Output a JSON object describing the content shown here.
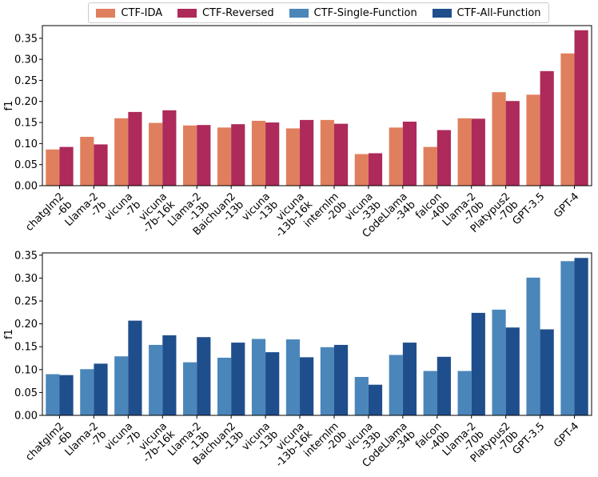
{
  "legend": {
    "items": [
      {
        "label": "CTF-IDA",
        "color": "#E07F5E"
      },
      {
        "label": "CTF-Reversed",
        "color": "#AD2A5A"
      },
      {
        "label": "CTF-Single-Function",
        "color": "#4A86BA"
      },
      {
        "label": "CTF-All-Function",
        "color": "#1F4E8C"
      }
    ]
  },
  "chart_data": [
    {
      "type": "bar",
      "title": "",
      "xlabel": "",
      "ylabel": "f1",
      "ylim": [
        0,
        0.38
      ],
      "yticks": [
        "0.00",
        "0.05",
        "0.10",
        "0.15",
        "0.20",
        "0.25",
        "0.30",
        "0.35"
      ],
      "categories": [
        [
          "chatglm2",
          "-6b"
        ],
        [
          "Llama-2",
          "-7b"
        ],
        [
          "vicuna",
          "-7b"
        ],
        [
          "vicuna",
          "-7b-16k"
        ],
        [
          "Llama-2",
          "-13b"
        ],
        [
          "Baichuan2",
          "-13b"
        ],
        [
          "vicuna",
          "-13b"
        ],
        [
          "vicuna",
          "-13b-16k"
        ],
        [
          "internlm",
          "-20b"
        ],
        [
          "vicuna",
          "-33b"
        ],
        [
          "CodeLlama",
          "-34b"
        ],
        [
          "falcon",
          "-40b"
        ],
        [
          "Llama-2",
          "-70b"
        ],
        [
          "Platypus2",
          "-70b"
        ],
        [
          "GPT-3.5"
        ],
        [
          "GPT-4"
        ]
      ],
      "series": [
        {
          "name": "CTF-IDA",
          "color": "#E07F5E",
          "values": [
            0.086,
            0.116,
            0.16,
            0.149,
            0.143,
            0.138,
            0.154,
            0.136,
            0.156,
            0.075,
            0.138,
            0.092,
            0.16,
            0.222,
            0.216,
            0.314
          ]
        },
        {
          "name": "CTF-Reversed",
          "color": "#AD2A5A",
          "values": [
            0.092,
            0.098,
            0.175,
            0.179,
            0.144,
            0.146,
            0.15,
            0.156,
            0.147,
            0.077,
            0.152,
            0.132,
            0.159,
            0.201,
            0.272,
            0.369
          ]
        }
      ]
    },
    {
      "type": "bar",
      "title": "",
      "xlabel": "",
      "ylabel": "f1",
      "ylim": [
        0,
        0.355
      ],
      "yticks": [
        "0.00",
        "0.05",
        "0.10",
        "0.15",
        "0.20",
        "0.25",
        "0.30",
        "0.35"
      ],
      "categories": [
        [
          "chatglm2",
          "-6b"
        ],
        [
          "Llama-2",
          "-7b"
        ],
        [
          "vicuna",
          "-7b"
        ],
        [
          "vicuna",
          "-7b-16k"
        ],
        [
          "Llama-2",
          "-13b"
        ],
        [
          "Baichuan2",
          "-13b"
        ],
        [
          "vicuna",
          "-13b"
        ],
        [
          "vicuna",
          "-13b-16k"
        ],
        [
          "internlm",
          "-20b"
        ],
        [
          "vicuna",
          "-33b"
        ],
        [
          "CodeLlama",
          "-34b"
        ],
        [
          "falcon",
          "-40b"
        ],
        [
          "Llama-2",
          "-70b"
        ],
        [
          "Platypus2",
          "-70b"
        ],
        [
          "GPT-3.5"
        ],
        [
          "GPT-4"
        ]
      ],
      "series": [
        {
          "name": "CTF-Single-Function",
          "color": "#4A86BA",
          "values": [
            0.09,
            0.101,
            0.129,
            0.154,
            0.116,
            0.126,
            0.167,
            0.166,
            0.149,
            0.084,
            0.132,
            0.097,
            0.097,
            0.231,
            0.301,
            0.337
          ]
        },
        {
          "name": "CTF-All-Function",
          "color": "#1F4E8C",
          "values": [
            0.088,
            0.113,
            0.207,
            0.175,
            0.171,
            0.159,
            0.138,
            0.127,
            0.154,
            0.067,
            0.159,
            0.128,
            0.224,
            0.192,
            0.188,
            0.344
          ]
        }
      ]
    }
  ]
}
